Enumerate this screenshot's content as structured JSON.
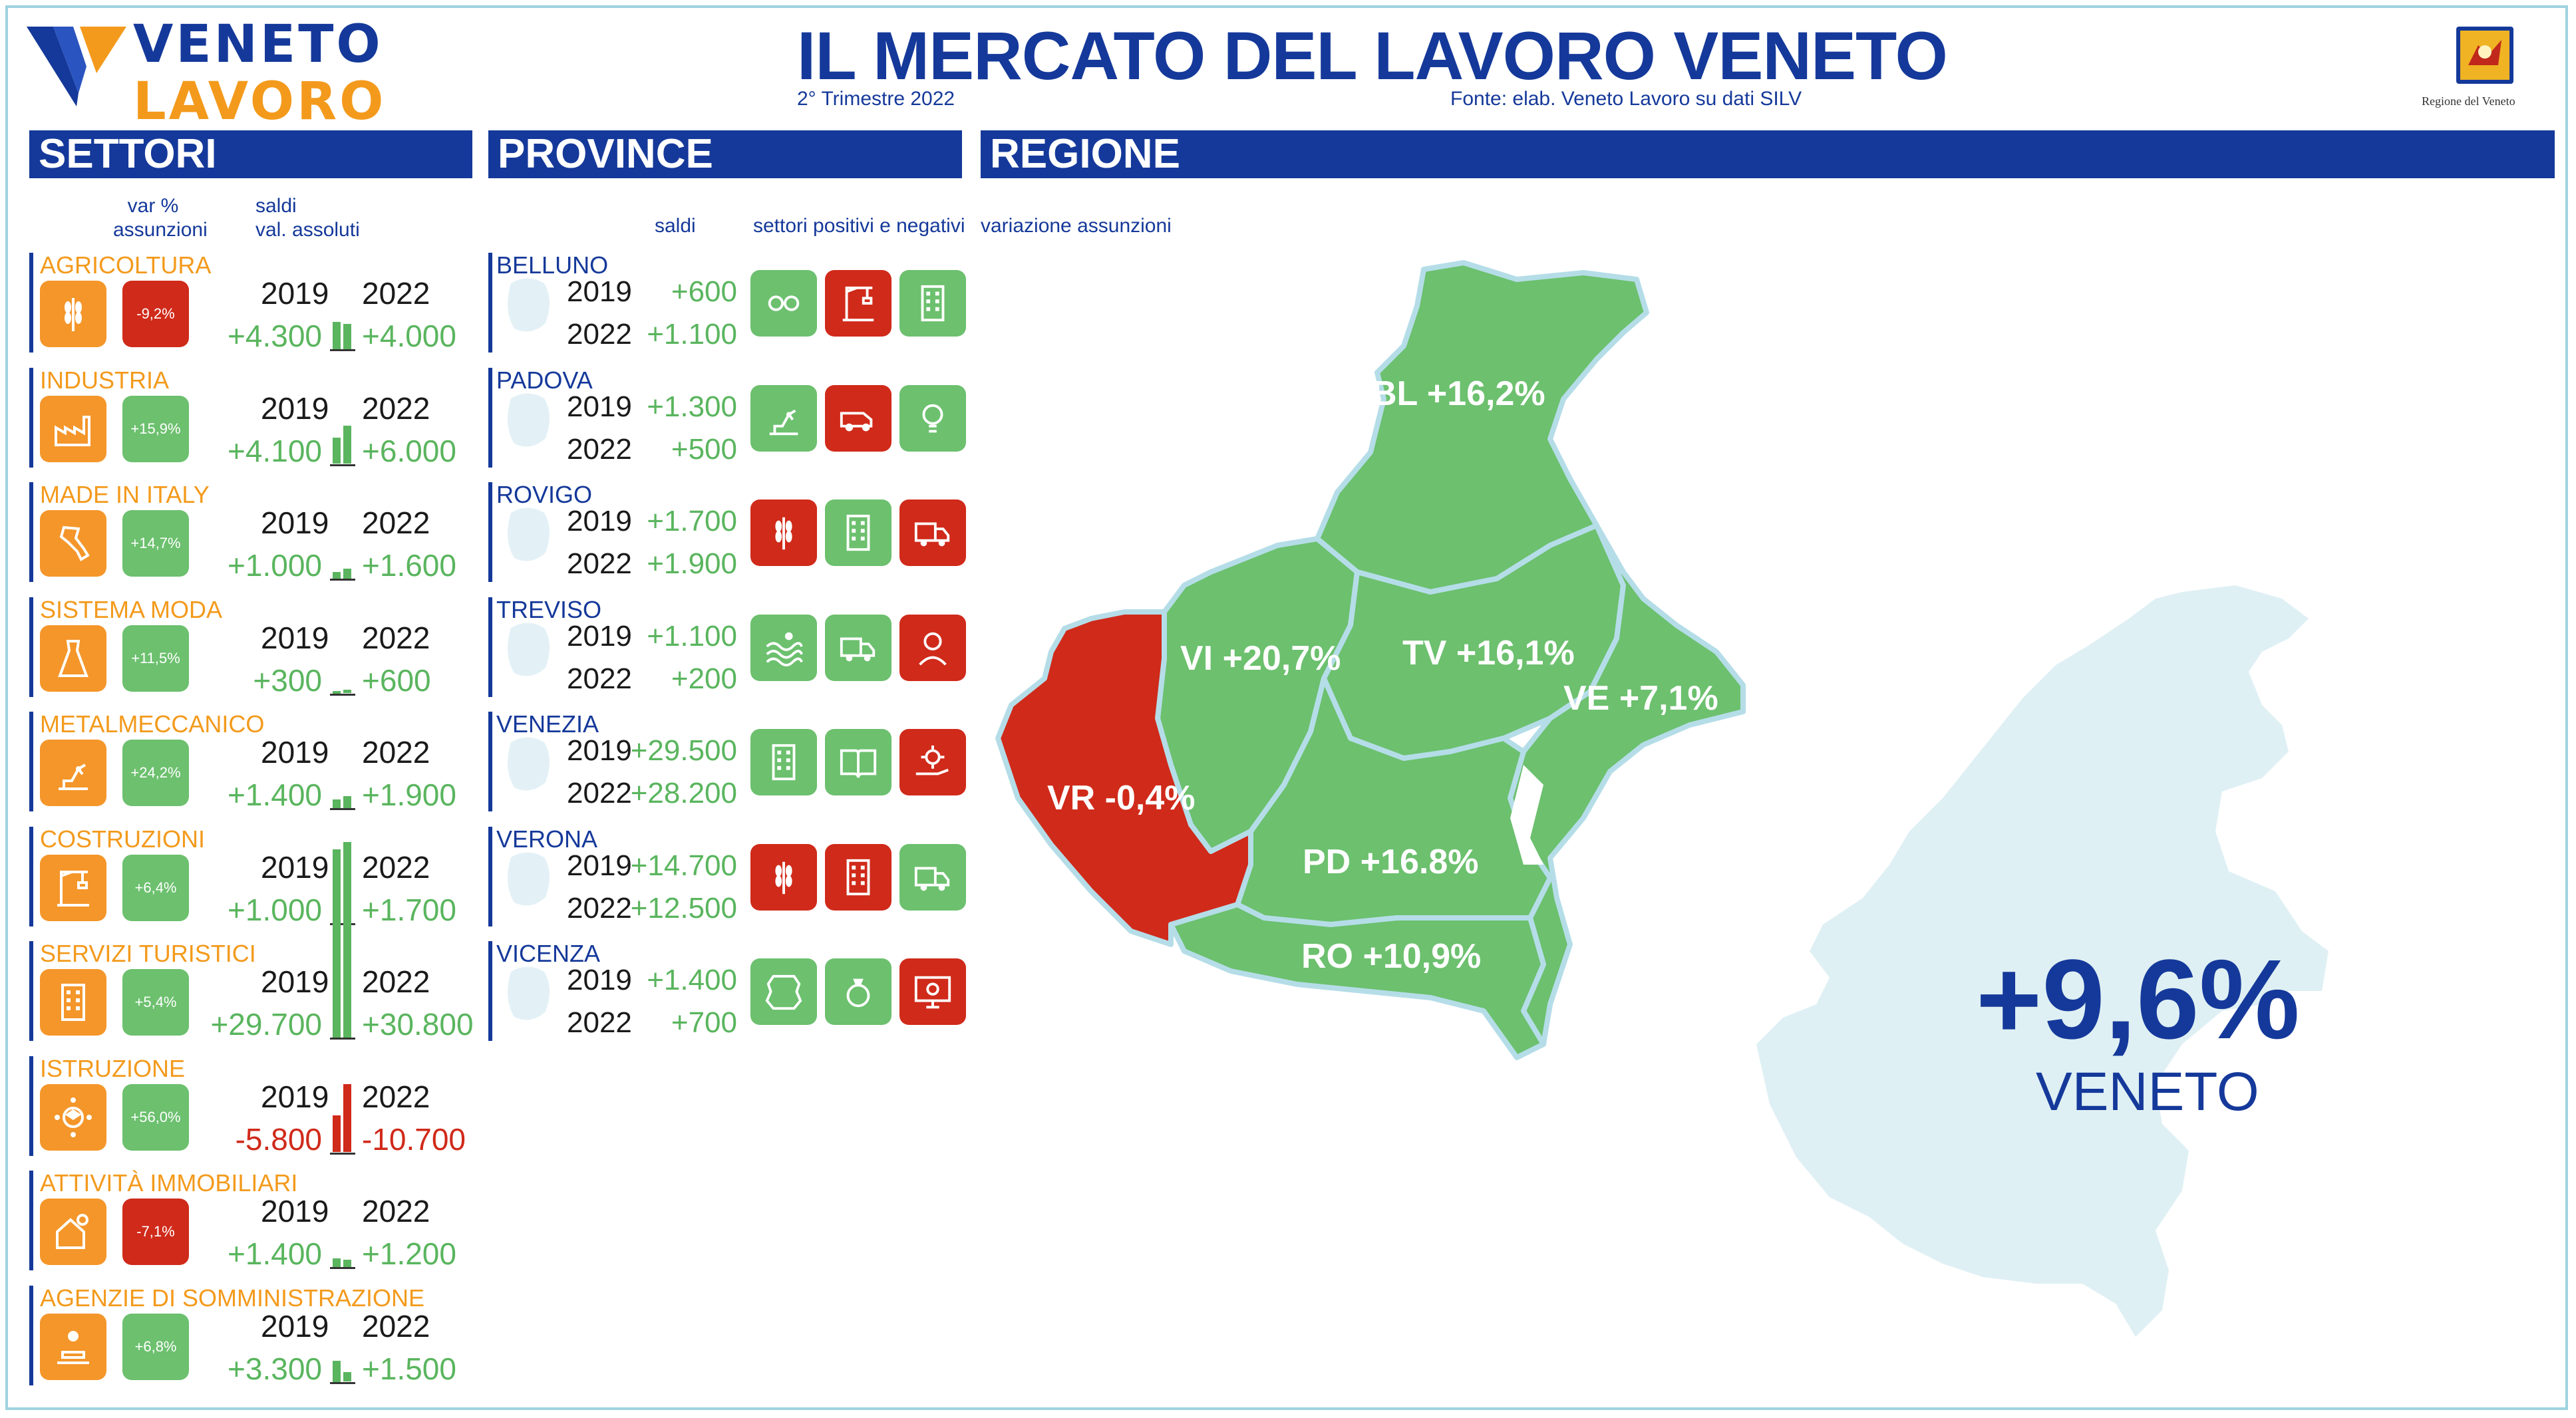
{
  "header": {
    "logo_line1": "VENETO",
    "logo_line2": "LAVORO",
    "title": "IL MERCATO DEL LAVORO VENETO",
    "subtitle": "2° Trimestre 2022",
    "source": "Fonte: elab. Veneto Lavoro su dati SILV",
    "seal_caption": "Regione del Veneto"
  },
  "colors": {
    "brand_blue": "#15399a",
    "orange": "#f4962a",
    "green": "#6cc06e",
    "red": "#d02a1a",
    "map_bg": "#dff0f4"
  },
  "sections": {
    "settori": "SETTORI",
    "province": "PROVINCE",
    "regione": "REGIONE"
  },
  "settori_heads": {
    "var_pct": "var %\nassunzioni",
    "saldi": "saldi\nval. assoluti"
  },
  "province_heads": {
    "saldi": "saldi",
    "settori": "settori positivi e negativi"
  },
  "regione_head": "variazione assunzioni",
  "year_a": "2019",
  "year_b": "2022",
  "sectors": [
    {
      "name": "AGRICOLTURA",
      "icon": "wheat-icon",
      "var": "-9,2%",
      "var_sign": "neg",
      "saldo_2019": "+4.300",
      "saldo_2022": "+4.000",
      "v2019": 4300,
      "v2022": 4000
    },
    {
      "name": "INDUSTRIA",
      "icon": "factory-icon",
      "var": "+15,9%",
      "var_sign": "pos",
      "saldo_2019": "+4.100",
      "saldo_2022": "+6.000",
      "v2019": 4100,
      "v2022": 6000
    },
    {
      "name": "MADE IN ITALY",
      "icon": "italy-map-icon",
      "var": "+14,7%",
      "var_sign": "pos",
      "saldo_2019": "+1.000",
      "saldo_2022": "+1.600",
      "v2019": 1000,
      "v2022": 1600
    },
    {
      "name": "SISTEMA MODA",
      "icon": "dress-icon",
      "var": "+11,5%",
      "var_sign": "pos",
      "saldo_2019": "+300",
      "saldo_2022": "+600",
      "v2019": 300,
      "v2022": 600
    },
    {
      "name": "METALMECCANICO",
      "icon": "robot-arm-icon",
      "var": "+24,2%",
      "var_sign": "pos",
      "saldo_2019": "+1.400",
      "saldo_2022": "+1.900",
      "v2019": 1400,
      "v2022": 1900
    },
    {
      "name": "COSTRUZIONI",
      "icon": "crane-icon",
      "var": "+6,4%",
      "var_sign": "pos",
      "saldo_2019": "+1.000",
      "saldo_2022": "+1.700",
      "v2019": 1000,
      "v2022": 1700
    },
    {
      "name": "SERVIZI TURISTICI",
      "icon": "hotel-icon",
      "var": "+5,4%",
      "var_sign": "pos",
      "saldo_2019": "+29.700",
      "saldo_2022": "+30.800",
      "v2019": 29700,
      "v2022": 30800
    },
    {
      "name": "ISTRUZIONE",
      "icon": "graduate-icon",
      "var": "+56,0%",
      "var_sign": "pos",
      "saldo_2019": "-5.800",
      "saldo_2022": "-10.700",
      "v2019": -5800,
      "v2022": -10700
    },
    {
      "name": "ATTIVITÀ IMMOBILIARI",
      "icon": "house-key-icon",
      "var": "-7,1%",
      "var_sign": "neg",
      "saldo_2019": "+1.400",
      "saldo_2022": "+1.200",
      "v2019": 1400,
      "v2022": 1200
    },
    {
      "name": "AGENZIE DI SOMMINISTRAZIONE",
      "icon": "desk-worker-icon",
      "var": "+6,8%",
      "var_sign": "pos",
      "saldo_2019": "+3.300",
      "saldo_2022": "+1.500",
      "v2019": 3300,
      "v2022": 1500
    }
  ],
  "provinces": [
    {
      "name": "BELLUNO",
      "saldo_2019": "+600",
      "saldo_2022": "+1.100",
      "icons": [
        {
          "name": "glasses-icon",
          "sign": "pos"
        },
        {
          "name": "crane-icon",
          "sign": "neg"
        },
        {
          "name": "hotel-icon",
          "sign": "pos"
        }
      ]
    },
    {
      "name": "PADOVA",
      "saldo_2019": "+1.300",
      "saldo_2022": "+500",
      "icons": [
        {
          "name": "robot-arm-icon",
          "sign": "pos"
        },
        {
          "name": "van-icon",
          "sign": "neg"
        },
        {
          "name": "lightbulb-icon",
          "sign": "pos"
        }
      ]
    },
    {
      "name": "ROVIGO",
      "saldo_2019": "+1.700",
      "saldo_2022": "+1.900",
      "icons": [
        {
          "name": "wheat-icon",
          "sign": "neg"
        },
        {
          "name": "hotel-icon",
          "sign": "pos"
        },
        {
          "name": "delivery-truck-icon",
          "sign": "neg"
        }
      ]
    },
    {
      "name": "TREVISO",
      "saldo_2019": "+1.100",
      "saldo_2022": "+200",
      "icons": [
        {
          "name": "wave-icon",
          "sign": "pos"
        },
        {
          "name": "delivery-truck-icon",
          "sign": "pos"
        },
        {
          "name": "operator-icon",
          "sign": "neg"
        }
      ]
    },
    {
      "name": "VENEZIA",
      "saldo_2019": "+29.500",
      "saldo_2022": "+28.200",
      "icons": [
        {
          "name": "hotel-icon",
          "sign": "pos"
        },
        {
          "name": "book-icon",
          "sign": "pos"
        },
        {
          "name": "gear-hand-icon",
          "sign": "neg"
        }
      ]
    },
    {
      "name": "VERONA",
      "saldo_2019": "+14.700",
      "saldo_2022": "+12.500",
      "icons": [
        {
          "name": "wheat-icon",
          "sign": "neg"
        },
        {
          "name": "hotel-icon",
          "sign": "neg"
        },
        {
          "name": "delivery-truck-icon",
          "sign": "pos"
        }
      ]
    },
    {
      "name": "VICENZA",
      "saldo_2019": "+1.400",
      "saldo_2022": "+700",
      "icons": [
        {
          "name": "leather-icon",
          "sign": "pos"
        },
        {
          "name": "ring-icon",
          "sign": "pos"
        },
        {
          "name": "monitor-gear-icon",
          "sign": "neg"
        }
      ]
    }
  ],
  "map": {
    "BL": "BL +16,2%",
    "VI": "VI +20,7%",
    "TV": "TV +16,1%",
    "VE": "VE +7,1%",
    "VR": "VR -0,4%",
    "PD": "PD +16.8%",
    "RO": "RO +10,9%"
  },
  "veneto": {
    "value": "+9,6%",
    "label": "VENETO"
  }
}
